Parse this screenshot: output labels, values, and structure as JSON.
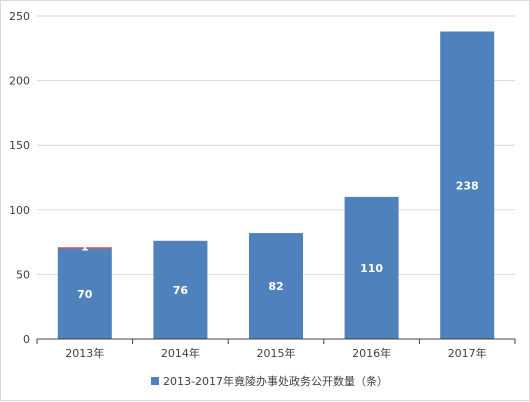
{
  "chart_data": {
    "type": "bar",
    "categories": [
      "2013年",
      "2014年",
      "2015年",
      "2016年",
      "2017年"
    ],
    "series": [
      {
        "name": "2013-2017年竟陵办事处政务公开数量（条）",
        "values": [
          70,
          76,
          82,
          110,
          238
        ],
        "color": "#4f81bd"
      },
      {
        "name": "",
        "values": [
          1,
          null,
          null,
          null,
          null
        ],
        "color": "#c0504d"
      }
    ],
    "y_ticks": [
      0,
      50,
      100,
      150,
      200,
      250
    ],
    "ylim": [
      0,
      250
    ],
    "grid": true,
    "legend_position": "bottom",
    "title": "",
    "xlabel": "",
    "ylabel": ""
  }
}
